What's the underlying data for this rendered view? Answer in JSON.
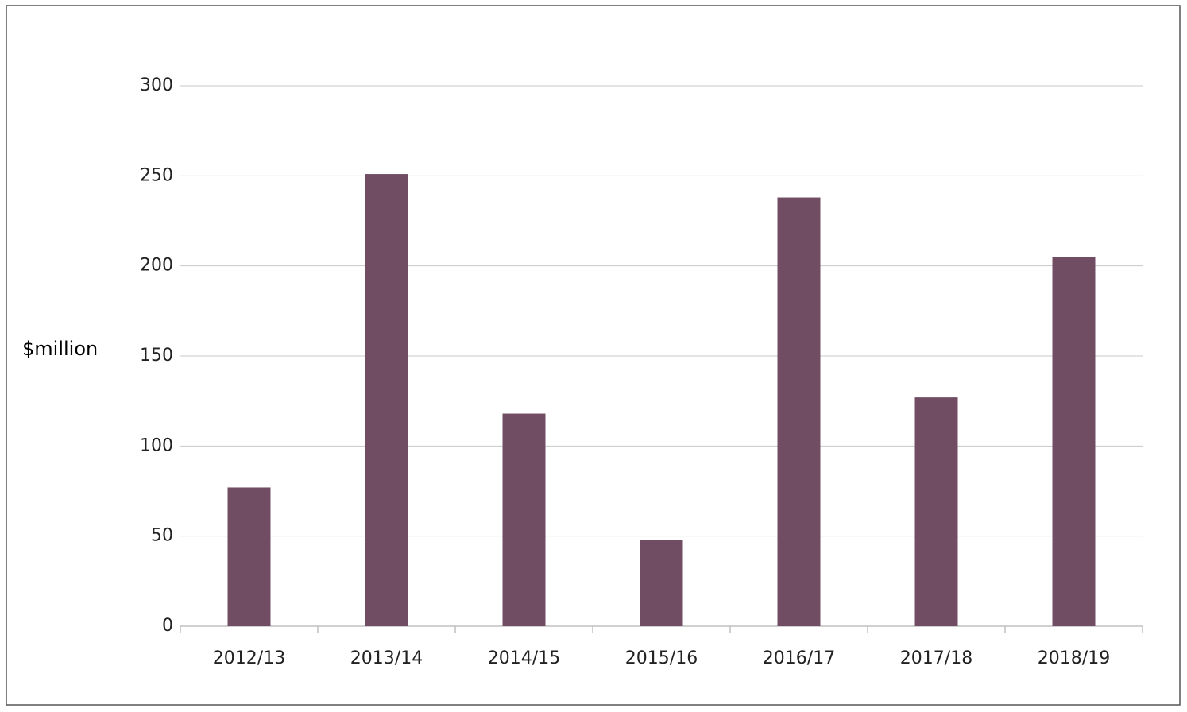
{
  "chart_data": {
    "type": "bar",
    "y_label": "$million",
    "categories": [
      "2012/13",
      "2013/14",
      "2014/15",
      "2015/16",
      "2016/17",
      "2017/18",
      "2018/19"
    ],
    "values": [
      77,
      251,
      118,
      48,
      238,
      127,
      205
    ],
    "color": "#714d64",
    "ylim": [
      0,
      300
    ],
    "yticks": [
      0,
      50,
      100,
      150,
      200,
      250,
      300
    ],
    "grid": true
  }
}
